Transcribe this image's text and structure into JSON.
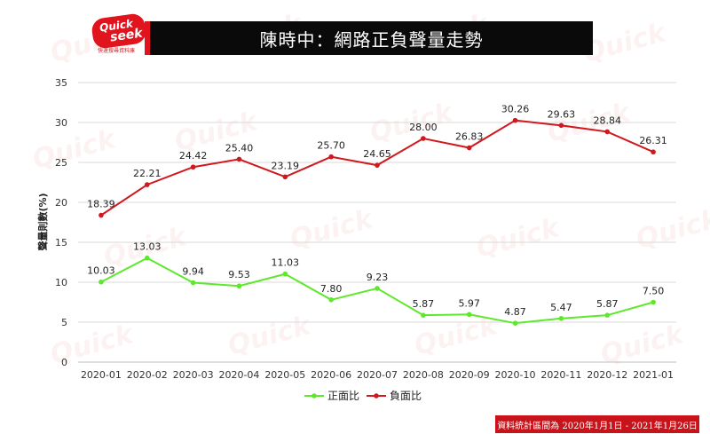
{
  "logo": {
    "line1": "Quick",
    "line2": "seek",
    "sub": "快速搜尋資料庫"
  },
  "title": "陳時中：網路正負聲量走勢",
  "footnote": "資料統計區間為 2020年1月1日 - 2021年1月26日",
  "colors": {
    "positive": "#5ee82c",
    "negative": "#d0181e",
    "grid": "#d9d9d9",
    "title_bg": "#0a0a0a",
    "accent": "#e1141d"
  },
  "chart_data": {
    "type": "line",
    "title": "陳時中：網路正負聲量走勢",
    "xlabel": "",
    "ylabel": "聲量則數(%)",
    "ylim": [
      0,
      35
    ],
    "yticks": [
      0,
      5,
      10,
      15,
      20,
      25,
      30,
      35
    ],
    "grid": true,
    "legend_position": "bottom",
    "categories": [
      "2020-01",
      "2020-02",
      "2020-03",
      "2020-04",
      "2020-05",
      "2020-06",
      "2020-07",
      "2020-08",
      "2020-09",
      "2020-10",
      "2020-11",
      "2020-12",
      "2021-01"
    ],
    "series": [
      {
        "name": "正面比",
        "color": "#5ee82c",
        "values": [
          10.03,
          13.03,
          9.94,
          9.53,
          11.03,
          7.8,
          9.23,
          5.87,
          5.97,
          4.87,
          5.47,
          5.87,
          7.5
        ],
        "labels": [
          "10.03",
          "13.03",
          "9.94",
          "9.53",
          "11.03",
          "7.80",
          "9.23",
          "5.87",
          "5.97",
          "4.87",
          "5.47",
          "5.87",
          "7.50"
        ]
      },
      {
        "name": "負面比",
        "color": "#d0181e",
        "values": [
          18.39,
          22.21,
          24.42,
          25.4,
          23.19,
          25.7,
          24.65,
          28.0,
          26.83,
          30.26,
          29.63,
          28.84,
          26.31
        ],
        "labels": [
          "18.39",
          "22.21",
          "24.42",
          "25.40",
          "23.19",
          "25.70",
          "24.65",
          "28.00",
          "26.83",
          "30.26",
          "29.63",
          "28.84",
          "26.31"
        ]
      }
    ]
  }
}
